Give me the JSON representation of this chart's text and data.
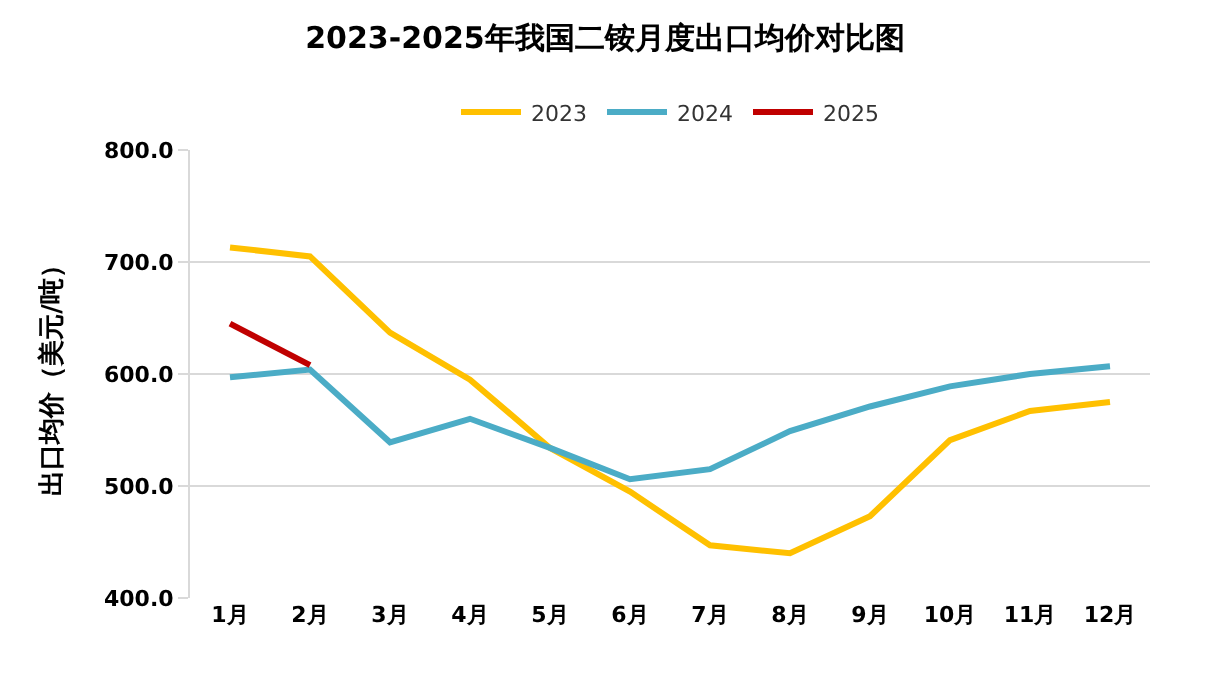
{
  "chart_data": {
    "type": "line",
    "title": "2023-2025年我国二铵月度出口均价对比图",
    "ylabel": "出口均价（美元/吨）",
    "categories": [
      "1月",
      "2月",
      "3月",
      "4月",
      "5月",
      "6月",
      "7月",
      "8月",
      "9月",
      "10月",
      "11月",
      "12月"
    ],
    "series": [
      {
        "name": "2023",
        "color": "#ffc000",
        "values": [
          713,
          705,
          637,
          595,
          534,
          495,
          447,
          440,
          473,
          541,
          567,
          575
        ]
      },
      {
        "name": "2024",
        "color": "#4bacc6",
        "values": [
          597,
          604,
          539,
          560,
          534,
          506,
          515,
          549,
          571,
          589,
          600,
          607
        ]
      },
      {
        "name": "2025",
        "color": "#c00000",
        "values": [
          645,
          608,
          null,
          null,
          null,
          null,
          null,
          null,
          null,
          null,
          null,
          null
        ]
      }
    ],
    "ylim": [
      400,
      800
    ],
    "yticks": [
      {
        "value": 400,
        "label": "400.0"
      },
      {
        "value": 500,
        "label": "500.0"
      },
      {
        "value": 600,
        "label": "600.0"
      },
      {
        "value": 700,
        "label": "700.0"
      },
      {
        "value": 800,
        "label": "800.0"
      }
    ],
    "grid": "y",
    "legend": "top",
    "marker": "none",
    "line_style": "solid"
  }
}
